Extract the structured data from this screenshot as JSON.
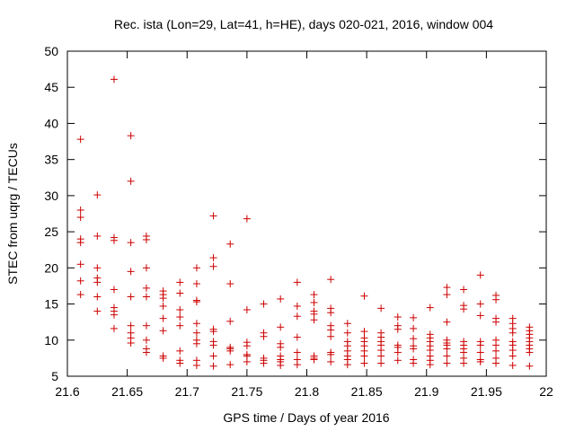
{
  "chart_data": {
    "type": "scatter",
    "title": "Rec. ista (Lon=29, Lat=41, h=HE), days 020-021, 2016, window 004",
    "xlabel": "GPS time / Days of year 2016",
    "ylabel": "STEC from uqrg / TECUs",
    "xlim": [
      21.6,
      22
    ],
    "ylim": [
      5,
      50
    ],
    "x_ticks": [
      21.6,
      21.65,
      21.7,
      21.75,
      21.8,
      21.85,
      21.9,
      21.95,
      22
    ],
    "x_tick_labels": [
      "21.6",
      "21.65",
      "21.7",
      "21.75",
      "21.8",
      "21.85",
      "21.9",
      "21.95",
      "22"
    ],
    "y_ticks": [
      5,
      10,
      15,
      20,
      25,
      30,
      35,
      40,
      45,
      50
    ],
    "y_tick_labels": [
      "5",
      "10",
      "15",
      "20",
      "25",
      "30",
      "35",
      "40",
      "45",
      "50"
    ],
    "grid": false,
    "marker": "+",
    "series": [
      {
        "name": "STEC",
        "color": "#cc0000",
        "points": [
          [
            21.611,
            37.8
          ],
          [
            21.611,
            28.0
          ],
          [
            21.611,
            27.0
          ],
          [
            21.611,
            24.0
          ],
          [
            21.611,
            23.5
          ],
          [
            21.611,
            20.5
          ],
          [
            21.611,
            18.2
          ],
          [
            21.611,
            16.3
          ],
          [
            21.625,
            30.1
          ],
          [
            21.625,
            24.4
          ],
          [
            21.625,
            20.0
          ],
          [
            21.625,
            18.6
          ],
          [
            21.625,
            18.0
          ],
          [
            21.625,
            16.0
          ],
          [
            21.625,
            14.0
          ],
          [
            21.639,
            46.1
          ],
          [
            21.639,
            24.2
          ],
          [
            21.639,
            23.8
          ],
          [
            21.639,
            17.0
          ],
          [
            21.639,
            14.5
          ],
          [
            21.639,
            14.0
          ],
          [
            21.639,
            13.5
          ],
          [
            21.639,
            11.6
          ],
          [
            21.653,
            38.3
          ],
          [
            21.653,
            32.0
          ],
          [
            21.653,
            23.5
          ],
          [
            21.653,
            19.5
          ],
          [
            21.653,
            16.0
          ],
          [
            21.653,
            12.0
          ],
          [
            21.653,
            11.0
          ],
          [
            21.653,
            10.3
          ],
          [
            21.653,
            9.6
          ],
          [
            21.666,
            24.4
          ],
          [
            21.666,
            23.9
          ],
          [
            21.666,
            20.0
          ],
          [
            21.666,
            17.2
          ],
          [
            21.666,
            16.0
          ],
          [
            21.666,
            12.0
          ],
          [
            21.666,
            10.0
          ],
          [
            21.666,
            8.8
          ],
          [
            21.666,
            8.3
          ],
          [
            21.68,
            16.8
          ],
          [
            21.68,
            16.3
          ],
          [
            21.68,
            15.8
          ],
          [
            21.68,
            14.7
          ],
          [
            21.68,
            13.0
          ],
          [
            21.68,
            11.3
          ],
          [
            21.68,
            7.8
          ],
          [
            21.68,
            7.5
          ],
          [
            21.694,
            18.0
          ],
          [
            21.694,
            16.5
          ],
          [
            21.694,
            14.2
          ],
          [
            21.694,
            13.2
          ],
          [
            21.694,
            12.0
          ],
          [
            21.694,
            8.5
          ],
          [
            21.694,
            7.2
          ],
          [
            21.694,
            6.8
          ],
          [
            21.708,
            20.0
          ],
          [
            21.708,
            17.8
          ],
          [
            21.708,
            15.5
          ],
          [
            21.708,
            15.3
          ],
          [
            21.708,
            12.3
          ],
          [
            21.708,
            11.0
          ],
          [
            21.708,
            10.0
          ],
          [
            21.708,
            9.5
          ],
          [
            21.708,
            7.2
          ],
          [
            21.708,
            6.5
          ],
          [
            21.722,
            27.2
          ],
          [
            21.722,
            21.4
          ],
          [
            21.722,
            20.2
          ],
          [
            21.722,
            11.5
          ],
          [
            21.722,
            11.2
          ],
          [
            21.722,
            9.8
          ],
          [
            21.722,
            9.3
          ],
          [
            21.722,
            7.8
          ],
          [
            21.722,
            6.4
          ],
          [
            21.736,
            23.3
          ],
          [
            21.736,
            17.8
          ],
          [
            21.736,
            12.6
          ],
          [
            21.736,
            9.0
          ],
          [
            21.736,
            8.8
          ],
          [
            21.736,
            8.5
          ],
          [
            21.736,
            6.6
          ],
          [
            21.75,
            26.8
          ],
          [
            21.75,
            14.2
          ],
          [
            21.75,
            9.7
          ],
          [
            21.75,
            9.2
          ],
          [
            21.75,
            8.0
          ],
          [
            21.75,
            7.8
          ],
          [
            21.75,
            7.0
          ],
          [
            21.764,
            15.0
          ],
          [
            21.764,
            11.0
          ],
          [
            21.764,
            10.5
          ],
          [
            21.764,
            7.5
          ],
          [
            21.764,
            7.2
          ],
          [
            21.764,
            6.8
          ],
          [
            21.778,
            15.7
          ],
          [
            21.778,
            11.8
          ],
          [
            21.778,
            9.5
          ],
          [
            21.778,
            9.0
          ],
          [
            21.778,
            7.8
          ],
          [
            21.778,
            7.3
          ],
          [
            21.778,
            7.0
          ],
          [
            21.778,
            6.5
          ],
          [
            21.792,
            18.0
          ],
          [
            21.792,
            14.7
          ],
          [
            21.792,
            13.3
          ],
          [
            21.792,
            10.4
          ],
          [
            21.792,
            8.3
          ],
          [
            21.792,
            7.3
          ],
          [
            21.792,
            6.6
          ],
          [
            21.806,
            16.3
          ],
          [
            21.806,
            15.2
          ],
          [
            21.806,
            14.0
          ],
          [
            21.806,
            13.6
          ],
          [
            21.806,
            12.8
          ],
          [
            21.806,
            7.8
          ],
          [
            21.806,
            7.5
          ],
          [
            21.806,
            7.3
          ],
          [
            21.82,
            18.4
          ],
          [
            21.82,
            14.4
          ],
          [
            21.82,
            13.8
          ],
          [
            21.82,
            12.0
          ],
          [
            21.82,
            11.4
          ],
          [
            21.82,
            10.5
          ],
          [
            21.82,
            8.3
          ],
          [
            21.82,
            8.0
          ],
          [
            21.82,
            7.0
          ],
          [
            21.834,
            12.3
          ],
          [
            21.834,
            11.0
          ],
          [
            21.834,
            9.8
          ],
          [
            21.834,
            9.2
          ],
          [
            21.834,
            8.5
          ],
          [
            21.834,
            7.8
          ],
          [
            21.834,
            7.3
          ],
          [
            21.834,
            6.6
          ],
          [
            21.848,
            16.1
          ],
          [
            21.848,
            11.2
          ],
          [
            21.848,
            10.3
          ],
          [
            21.848,
            9.8
          ],
          [
            21.848,
            9.2
          ],
          [
            21.848,
            8.5
          ],
          [
            21.848,
            7.8
          ],
          [
            21.848,
            6.8
          ],
          [
            21.862,
            14.4
          ],
          [
            21.862,
            11.0
          ],
          [
            21.862,
            10.4
          ],
          [
            21.862,
            9.8
          ],
          [
            21.862,
            9.3
          ],
          [
            21.862,
            8.6
          ],
          [
            21.862,
            7.8
          ],
          [
            21.862,
            6.8
          ],
          [
            21.876,
            13.2
          ],
          [
            21.876,
            12.0
          ],
          [
            21.876,
            11.5
          ],
          [
            21.876,
            9.3
          ],
          [
            21.876,
            9.0
          ],
          [
            21.876,
            8.3
          ],
          [
            21.876,
            7.2
          ],
          [
            21.889,
            13.1
          ],
          [
            21.889,
            11.6
          ],
          [
            21.889,
            10.2
          ],
          [
            21.889,
            9.2
          ],
          [
            21.889,
            8.8
          ],
          [
            21.889,
            7.3
          ],
          [
            21.889,
            6.8
          ],
          [
            21.903,
            14.5
          ],
          [
            21.903,
            10.8
          ],
          [
            21.903,
            10.3
          ],
          [
            21.903,
            9.8
          ],
          [
            21.903,
            9.2
          ],
          [
            21.903,
            8.6
          ],
          [
            21.903,
            7.8
          ],
          [
            21.903,
            7.2
          ],
          [
            21.903,
            6.6
          ],
          [
            21.917,
            17.3
          ],
          [
            21.917,
            16.3
          ],
          [
            21.917,
            12.5
          ],
          [
            21.917,
            10.0
          ],
          [
            21.917,
            9.6
          ],
          [
            21.917,
            9.3
          ],
          [
            21.917,
            8.8
          ],
          [
            21.917,
            7.8
          ],
          [
            21.917,
            6.8
          ],
          [
            21.931,
            17.0
          ],
          [
            21.931,
            14.8
          ],
          [
            21.931,
            14.3
          ],
          [
            21.931,
            9.8
          ],
          [
            21.931,
            9.3
          ],
          [
            21.931,
            8.8
          ],
          [
            21.931,
            8.3
          ],
          [
            21.931,
            7.5
          ],
          [
            21.931,
            6.8
          ],
          [
            21.945,
            19.0
          ],
          [
            21.945,
            15.0
          ],
          [
            21.945,
            13.4
          ],
          [
            21.945,
            9.8
          ],
          [
            21.945,
            9.3
          ],
          [
            21.945,
            8.3
          ],
          [
            21.945,
            7.3
          ],
          [
            21.945,
            7.0
          ],
          [
            21.958,
            16.2
          ],
          [
            21.958,
            15.6
          ],
          [
            21.958,
            13.0
          ],
          [
            21.958,
            12.5
          ],
          [
            21.958,
            10.0
          ],
          [
            21.958,
            9.3
          ],
          [
            21.958,
            8.5
          ],
          [
            21.958,
            7.5
          ],
          [
            21.958,
            6.8
          ],
          [
            21.972,
            13.0
          ],
          [
            21.972,
            12.3
          ],
          [
            21.972,
            11.6
          ],
          [
            21.972,
            11.0
          ],
          [
            21.972,
            9.8
          ],
          [
            21.972,
            9.3
          ],
          [
            21.972,
            8.6
          ],
          [
            21.972,
            7.8
          ],
          [
            21.972,
            6.5
          ],
          [
            21.986,
            11.8
          ],
          [
            21.986,
            11.3
          ],
          [
            21.986,
            10.8
          ],
          [
            21.986,
            10.3
          ],
          [
            21.986,
            9.8
          ],
          [
            21.986,
            9.3
          ],
          [
            21.986,
            8.8
          ],
          [
            21.986,
            8.3
          ],
          [
            21.986,
            6.4
          ]
        ]
      }
    ]
  }
}
